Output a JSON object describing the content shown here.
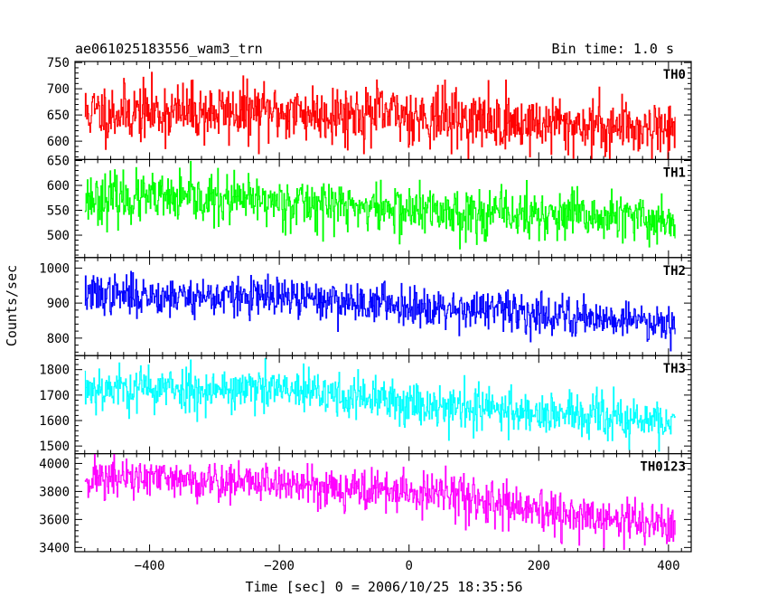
{
  "header": {
    "left_title": "ae061025183556_wam3_trn",
    "right_title": "Bin time: 1.0 s"
  },
  "axes": {
    "xlabel": "Time [sec] 0 = 2006/10/25 18:35:56",
    "ylabel": "Counts/sec"
  },
  "chart_data": {
    "type": "line",
    "title": "ae061025183556_wam3_trn",
    "xlabel": "Time [sec] 0 = 2006/10/25 18:35:56",
    "ylabel": "Counts/sec",
    "xlim": [
      -515,
      435
    ],
    "x_ticks": [
      -400,
      -200,
      0,
      200,
      400
    ],
    "x_range": [
      -500,
      410
    ],
    "x_step": 1.0,
    "grid": false,
    "panels": [
      {
        "name": "TH0",
        "color": "#ff0000",
        "ylim": [
          565,
          752
        ],
        "y_ticks": [
          600,
          650,
          700,
          750
        ],
        "trend": [
          [
            -500,
            655
          ],
          [
            -200,
            655
          ],
          [
            0,
            650
          ],
          [
            150,
            635
          ],
          [
            410,
            625
          ]
        ],
        "noise": 28,
        "seed": 11
      },
      {
        "name": "TH1",
        "color": "#00ff00",
        "ylim": [
          455,
          652
        ],
        "y_ticks": [
          500,
          550,
          600,
          650
        ],
        "trend": [
          [
            -500,
            575
          ],
          [
            -200,
            568
          ],
          [
            0,
            550
          ],
          [
            200,
            540
          ],
          [
            410,
            530
          ]
        ],
        "noise": 25,
        "seed": 23
      },
      {
        "name": "TH2",
        "color": "#0000ff",
        "ylim": [
          750,
          1030
        ],
        "y_ticks": [
          800,
          900,
          1000
        ],
        "trend": [
          [
            -500,
            925
          ],
          [
            -200,
            915
          ],
          [
            0,
            895
          ],
          [
            200,
            870
          ],
          [
            410,
            845
          ]
        ],
        "noise": 28,
        "seed": 37
      },
      {
        "name": "TH3",
        "color": "#00ffff",
        "ylim": [
          1470,
          1855
        ],
        "y_ticks": [
          1500,
          1600,
          1700,
          1800
        ],
        "trend": [
          [
            -500,
            1730
          ],
          [
            -200,
            1720
          ],
          [
            0,
            1670
          ],
          [
            200,
            1630
          ],
          [
            410,
            1590
          ]
        ],
        "noise": 45,
        "seed": 53
      },
      {
        "name": "TH0123",
        "color": "#ff00ff",
        "ylim": [
          3370,
          4070
        ],
        "y_ticks": [
          3400,
          3600,
          3800,
          4000
        ],
        "trend": [
          [
            -500,
            3900
          ],
          [
            -200,
            3860
          ],
          [
            0,
            3790
          ],
          [
            80,
            3770
          ],
          [
            200,
            3640
          ],
          [
            410,
            3560
          ]
        ],
        "noise": 75,
        "seed": 71
      }
    ]
  }
}
